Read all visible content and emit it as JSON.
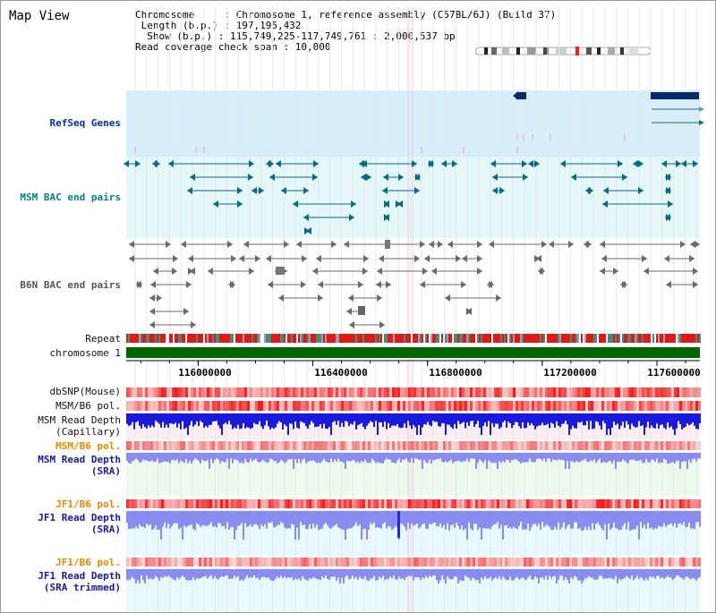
{
  "view": {
    "title": "Map View"
  },
  "info": {
    "chromosome_line": "Chromosome     : Chromosome 1, reference assembly (C57BL/6J) (Build 37)",
    "length_line": " Length (b.p.) : 197,195,432",
    "show_line": "  Show (b.p.) : 115,749,225-117,749,761 : 2,000,537 bp",
    "coverage_line": "Read coverage check span : 10,000"
  },
  "tracks": {
    "refseq": {
      "label": "RefSeq Genes",
      "color": "#0a2d9c"
    },
    "msm_bac": {
      "label": "MSM BAC end pairs",
      "color": "#0a7c8c"
    },
    "b6n_bac": {
      "label": "B6N BAC end pairs",
      "color": "#555555"
    },
    "repeat": {
      "label": "Repeat"
    },
    "chromosome": {
      "label": "chromosome 1",
      "color": "#006600"
    },
    "dbsnp": {
      "label": "dbSNP(Mouse)"
    },
    "msm_b6_pol": {
      "label": "MSM/B6 pol."
    },
    "msm_read_depth_cap": {
      "label": "MSM Read Depth\n(Capillary)"
    },
    "msm_b6_pol_2": {
      "label": "MSM/B6 pol.",
      "color": "#e08a00"
    },
    "msm_read_depth_sra": {
      "label": "MSM Read Depth\n(SRA)",
      "color": "#1a1aa0"
    },
    "jf1_b6_pol": {
      "label": "JF1/B6 pol.",
      "color": "#e08a00"
    },
    "jf1_read_depth_sra": {
      "label": "JF1 Read Depth\n(SRA)",
      "color": "#1a1aa0"
    },
    "jf1_b6_pol_2": {
      "label": "JF1/B6 pol.",
      "color": "#e08a00"
    },
    "jf1_read_depth_trim": {
      "label": "JF1 Read Depth\n(SRA trimmed)",
      "color": "#1a1aa0"
    }
  },
  "axis": {
    "ticks": [
      "116000000",
      "116400000",
      "116800000",
      "117200000",
      "117600000"
    ],
    "tick_values": [
      116000000,
      116400000,
      116800000,
      117200000,
      117600000
    ],
    "start": 115749225,
    "end": 117749761
  },
  "colors": {
    "refseq_bg": "#d6eef9",
    "msm_bg": "#e4f7f9",
    "depth_bar": "#1a1adc",
    "depth_sra": "#8a8cf0",
    "pol_red": "#ee2a2a",
    "track_bg_pink": "#fbeef3",
    "track_bg_green": "#eef9ee",
    "track_bg_cyan": "#e8f9fa"
  }
}
